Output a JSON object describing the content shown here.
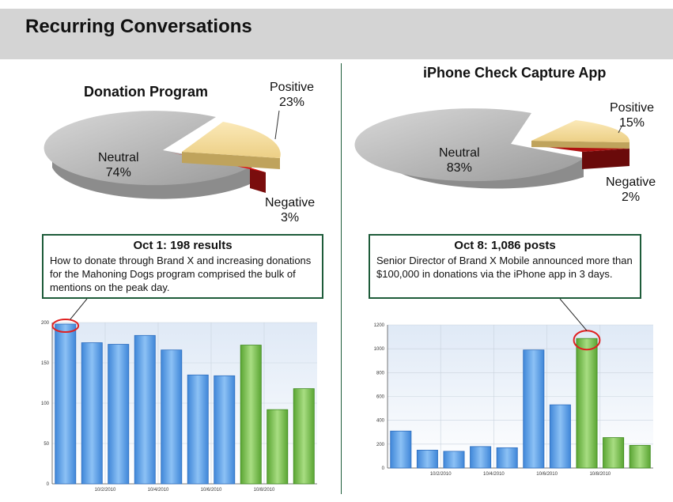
{
  "header": {
    "title": "Recurring Conversations"
  },
  "colors": {
    "header_bg": "#d4d4d4",
    "divider": "#1e5c3a",
    "positive": "#f5dd9d",
    "negative": "#e01010",
    "neutral": "#b9b9b9",
    "bar_blue": "#5a9fe6",
    "bar_green": "#7cc250",
    "callout_circle": "#e02020"
  },
  "left": {
    "pie_title": "Donation Program",
    "slices": [
      {
        "name": "Neutral",
        "pct_label": "74%",
        "value": 74
      },
      {
        "name": "Positive",
        "pct_label": "23%",
        "value": 23
      },
      {
        "name": "Negative",
        "pct_label": "3%",
        "value": 3
      }
    ],
    "callout": {
      "heading": "Oct 1: 198 results",
      "body": "How to donate through Brand X and increasing donations for the Mahoning Dogs program comprised the bulk of mentions on the peak day."
    }
  },
  "right": {
    "pie_title": "iPhone Check Capture App",
    "slices": [
      {
        "name": "Neutral",
        "pct_label": "83%",
        "value": 83
      },
      {
        "name": "Positive",
        "pct_label": "15%",
        "value": 15
      },
      {
        "name": "Negative",
        "pct_label": "2%",
        "value": 2
      }
    ],
    "callout": {
      "heading": "Oct 8: 1,086 posts",
      "body": "Senior Director of Brand X Mobile announced more than $100,000 in donations via the iPhone app in 3 days."
    }
  },
  "chart_data": [
    {
      "type": "pie",
      "title": "Donation Program",
      "labels": [
        "Neutral",
        "Positive",
        "Negative"
      ],
      "values": [
        74,
        23,
        3
      ]
    },
    {
      "type": "pie",
      "title": "iPhone Check Capture App",
      "labels": [
        "Neutral",
        "Positive",
        "Negative"
      ],
      "values": [
        83,
        15,
        2
      ]
    },
    {
      "type": "bar",
      "title": "",
      "values": [
        198,
        175,
        173,
        184,
        166,
        135,
        134,
        172,
        92,
        118
      ],
      "bar_colors": [
        "blue",
        "blue",
        "blue",
        "blue",
        "blue",
        "blue",
        "blue",
        "green",
        "green",
        "green"
      ],
      "highlight_index": 0,
      "ylim": [
        0,
        200
      ],
      "yticks": [
        0,
        50,
        100,
        150,
        200
      ],
      "xtick_labels": [
        {
          "after_bar": 1,
          "label": "10/2/2010"
        },
        {
          "after_bar": 3,
          "label": "10/4/2010"
        },
        {
          "after_bar": 5,
          "label": "10/6/2010"
        },
        {
          "after_bar": 7,
          "label": "10/8/2010"
        }
      ]
    },
    {
      "type": "bar",
      "title": "",
      "values": [
        310,
        150,
        140,
        180,
        170,
        990,
        530,
        1086,
        255,
        190
      ],
      "bar_colors": [
        "blue",
        "blue",
        "blue",
        "blue",
        "blue",
        "blue",
        "blue",
        "green",
        "green",
        "green"
      ],
      "highlight_index": 7,
      "ylim": [
        0,
        1200
      ],
      "yticks": [
        0,
        200,
        400,
        600,
        800,
        1000,
        1200
      ],
      "xtick_labels": [
        {
          "after_bar": 1,
          "label": "10/2/2010"
        },
        {
          "after_bar": 3,
          "label": "10/4/2010"
        },
        {
          "after_bar": 5,
          "label": "10/6/2010"
        },
        {
          "after_bar": 7,
          "label": "10/8/2010"
        }
      ]
    }
  ]
}
